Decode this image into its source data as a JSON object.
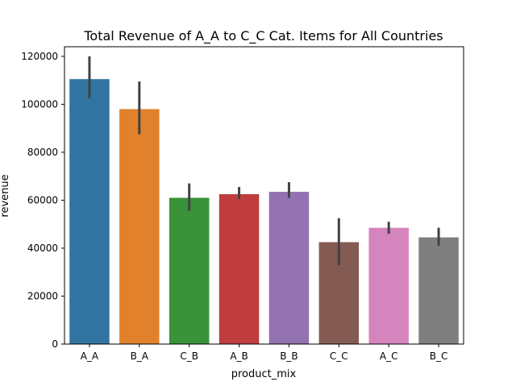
{
  "chart_data": {
    "type": "bar",
    "title": "Total Revenue of A_A to C_C Cat. Items for All Countries",
    "xlabel": "product_mix",
    "ylabel": "revenue",
    "categories": [
      "A_A",
      "B_A",
      "C_B",
      "A_B",
      "B_B",
      "C_C",
      "A_C",
      "B_C"
    ],
    "values": [
      110500,
      98000,
      61000,
      62500,
      63500,
      42500,
      48500,
      44500
    ],
    "error_low": [
      102500,
      87500,
      55500,
      60500,
      61000,
      33000,
      46000,
      41000
    ],
    "error_high": [
      120000,
      109500,
      67000,
      65500,
      67500,
      52500,
      51000,
      48500
    ],
    "colors": [
      "#3274a1",
      "#e1812c",
      "#3a923a",
      "#c03d3e",
      "#9372b2",
      "#845b53",
      "#d684bd",
      "#7f7f7f"
    ],
    "error_color": "#424242",
    "ylim": [
      0,
      124000
    ],
    "yticks": [
      0,
      20000,
      40000,
      60000,
      80000,
      100000,
      120000
    ],
    "ytick_labels": [
      "0",
      "20000",
      "40000",
      "60000",
      "80000",
      "100000",
      "120000"
    ],
    "grid": false,
    "legend": "none"
  }
}
